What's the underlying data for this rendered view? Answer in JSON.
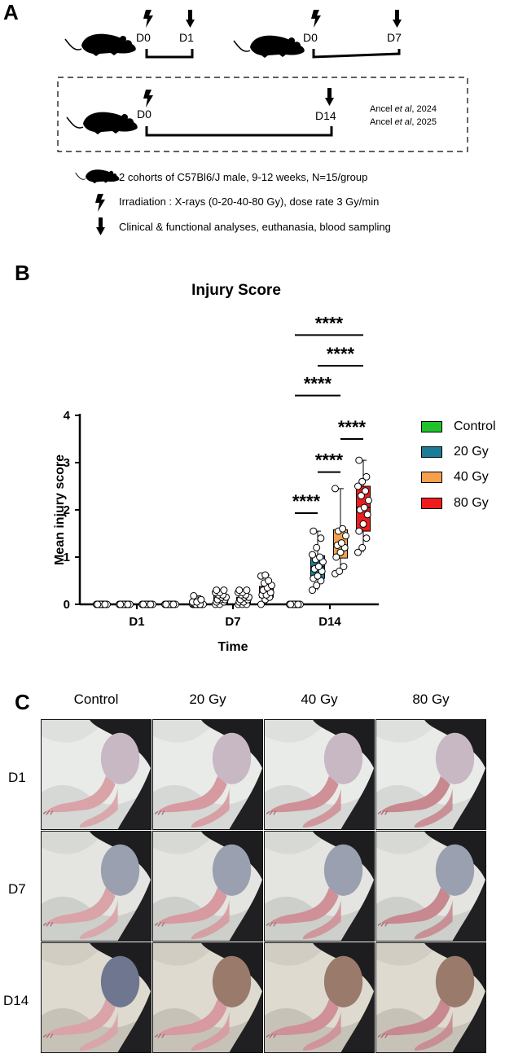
{
  "panels": {
    "a": "A",
    "b": "B",
    "c": "C"
  },
  "timeline": {
    "top_left": {
      "start": "D0",
      "end": "D1"
    },
    "top_right": {
      "start": "D0",
      "end": "D7"
    },
    "boxed": {
      "start": "D0",
      "end": "D14",
      "refs": [
        {
          "authors": "Ancel ",
          "etal": "et al",
          "year": ", 2024"
        },
        {
          "authors": "Ancel ",
          "etal": "et al",
          "year": ", 2025"
        }
      ]
    }
  },
  "legend_a": [
    {
      "icon": "mouse-icon",
      "text": "2 cohorts of C57Bl6/J male, 9-12 weeks, N=15/group"
    },
    {
      "icon": "lightning-icon",
      "text": "Irradiation : X-rays (0-20-40-80 Gy), dose rate 3 Gy/min"
    },
    {
      "icon": "down-arrow-icon",
      "text": "Clinical & functional analyses, euthanasia, blood sampling"
    }
  ],
  "chart_data": {
    "type": "box",
    "title": "Injury Score",
    "xlabel": "Time",
    "ylabel": "Mean injury score",
    "ylim": [
      0,
      4
    ],
    "yticks": [
      "0",
      "1",
      "2",
      "3",
      "4"
    ],
    "categories": [
      "D1",
      "D7",
      "D14"
    ],
    "series": [
      {
        "name": "Control",
        "color": "#22c02a",
        "boxes": [
          {
            "q1": 0,
            "median": 0,
            "q3": 0,
            "min": 0,
            "max": 0
          },
          {
            "q1": 0,
            "median": 0,
            "q3": 0.02,
            "min": 0,
            "max": 0.18
          },
          {
            "q1": 0,
            "median": 0,
            "q3": 0,
            "min": 0,
            "max": 0
          }
        ],
        "points": [
          [
            0,
            0,
            0,
            0,
            0,
            0,
            0,
            0,
            0,
            0,
            0,
            0,
            0,
            0,
            0
          ],
          [
            0,
            0,
            0,
            0,
            0,
            0,
            0,
            0,
            0,
            0,
            0,
            0.05,
            0.05,
            0.1,
            0.18
          ],
          [
            0,
            0,
            0,
            0,
            0,
            0,
            0,
            0,
            0,
            0,
            0,
            0,
            0,
            0,
            0
          ]
        ]
      },
      {
        "name": "20 Gy",
        "color": "#1a7c96",
        "boxes": [
          {
            "q1": 0,
            "median": 0,
            "q3": 0,
            "min": 0,
            "max": 0
          },
          {
            "q1": 0,
            "median": 0.1,
            "q3": 0.18,
            "min": 0,
            "max": 0.3
          },
          {
            "q1": 0.55,
            "median": 0.8,
            "q3": 1.03,
            "min": 0.3,
            "max": 1.55
          }
        ],
        "points": [
          [
            0,
            0,
            0,
            0,
            0,
            0,
            0,
            0,
            0,
            0,
            0,
            0,
            0,
            0,
            0
          ],
          [
            0,
            0,
            0.05,
            0.05,
            0.1,
            0.1,
            0.1,
            0.15,
            0.15,
            0.2,
            0.2,
            0.25,
            0.25,
            0.3,
            0.3
          ],
          [
            0.3,
            0.4,
            0.5,
            0.55,
            0.6,
            0.7,
            0.75,
            0.8,
            0.9,
            0.95,
            1.0,
            1.05,
            1.2,
            1.4,
            1.55
          ]
        ]
      },
      {
        "name": "40 Gy",
        "color": "#f4a04c",
        "boxes": [
          {
            "q1": 0,
            "median": 0,
            "q3": 0,
            "min": 0,
            "max": 0
          },
          {
            "q1": 0,
            "median": 0.05,
            "q3": 0.15,
            "min": 0,
            "max": 0.3
          },
          {
            "q1": 0.98,
            "median": 1.25,
            "q3": 1.58,
            "min": 0.65,
            "max": 2.45
          }
        ],
        "points": [
          [
            0,
            0,
            0,
            0,
            0,
            0,
            0,
            0,
            0,
            0,
            0,
            0,
            0,
            0,
            0
          ],
          [
            0,
            0,
            0,
            0.05,
            0.05,
            0.1,
            0.1,
            0.15,
            0.15,
            0.2,
            0.2,
            0.25,
            0.25,
            0.3,
            0.3
          ],
          [
            0.65,
            0.7,
            0.8,
            1.0,
            1.1,
            1.2,
            1.25,
            1.3,
            1.45,
            1.55,
            1.6,
            2.45
          ]
        ]
      },
      {
        "name": "80 Gy",
        "color": "#ee1c1c",
        "boxes": [
          {
            "q1": 0,
            "median": 0,
            "q3": 0,
            "min": 0,
            "max": 0
          },
          {
            "q1": 0.15,
            "median": 0.25,
            "q3": 0.38,
            "min": 0,
            "max": 0.62
          },
          {
            "q1": 1.55,
            "median": 2.05,
            "q3": 2.5,
            "min": 1.1,
            "max": 3.05
          }
        ],
        "points": [
          [
            0,
            0,
            0,
            0,
            0,
            0,
            0,
            0,
            0,
            0,
            0,
            0,
            0,
            0,
            0
          ],
          [
            0,
            0.1,
            0.15,
            0.2,
            0.2,
            0.25,
            0.3,
            0.35,
            0.4,
            0.45,
            0.5,
            0.6,
            0.62
          ],
          [
            1.1,
            1.2,
            1.4,
            1.55,
            1.7,
            1.9,
            2.0,
            2.05,
            2.2,
            2.3,
            2.4,
            2.5,
            2.6,
            2.7,
            3.05
          ]
        ]
      }
    ],
    "significance": [
      {
        "label": "****",
        "from": "Control",
        "to": "20 Gy",
        "category": "D14"
      },
      {
        "label": "****",
        "from": "20 Gy",
        "to": "40 Gy",
        "category": "D14"
      },
      {
        "label": "****",
        "from": "40 Gy",
        "to": "80 Gy",
        "category": "D14"
      },
      {
        "label": "****",
        "from": "Control",
        "to": "40 Gy",
        "category": "D14"
      },
      {
        "label": "****",
        "from": "20 Gy",
        "to": "80 Gy",
        "category": "D14"
      },
      {
        "label": "****",
        "from": "Control",
        "to": "80 Gy",
        "category": "D14"
      }
    ]
  },
  "photos": {
    "columns": [
      "Control",
      "20 Gy",
      "40 Gy",
      "80 Gy"
    ],
    "rows": [
      "D1",
      "D7",
      "D14"
    ]
  }
}
